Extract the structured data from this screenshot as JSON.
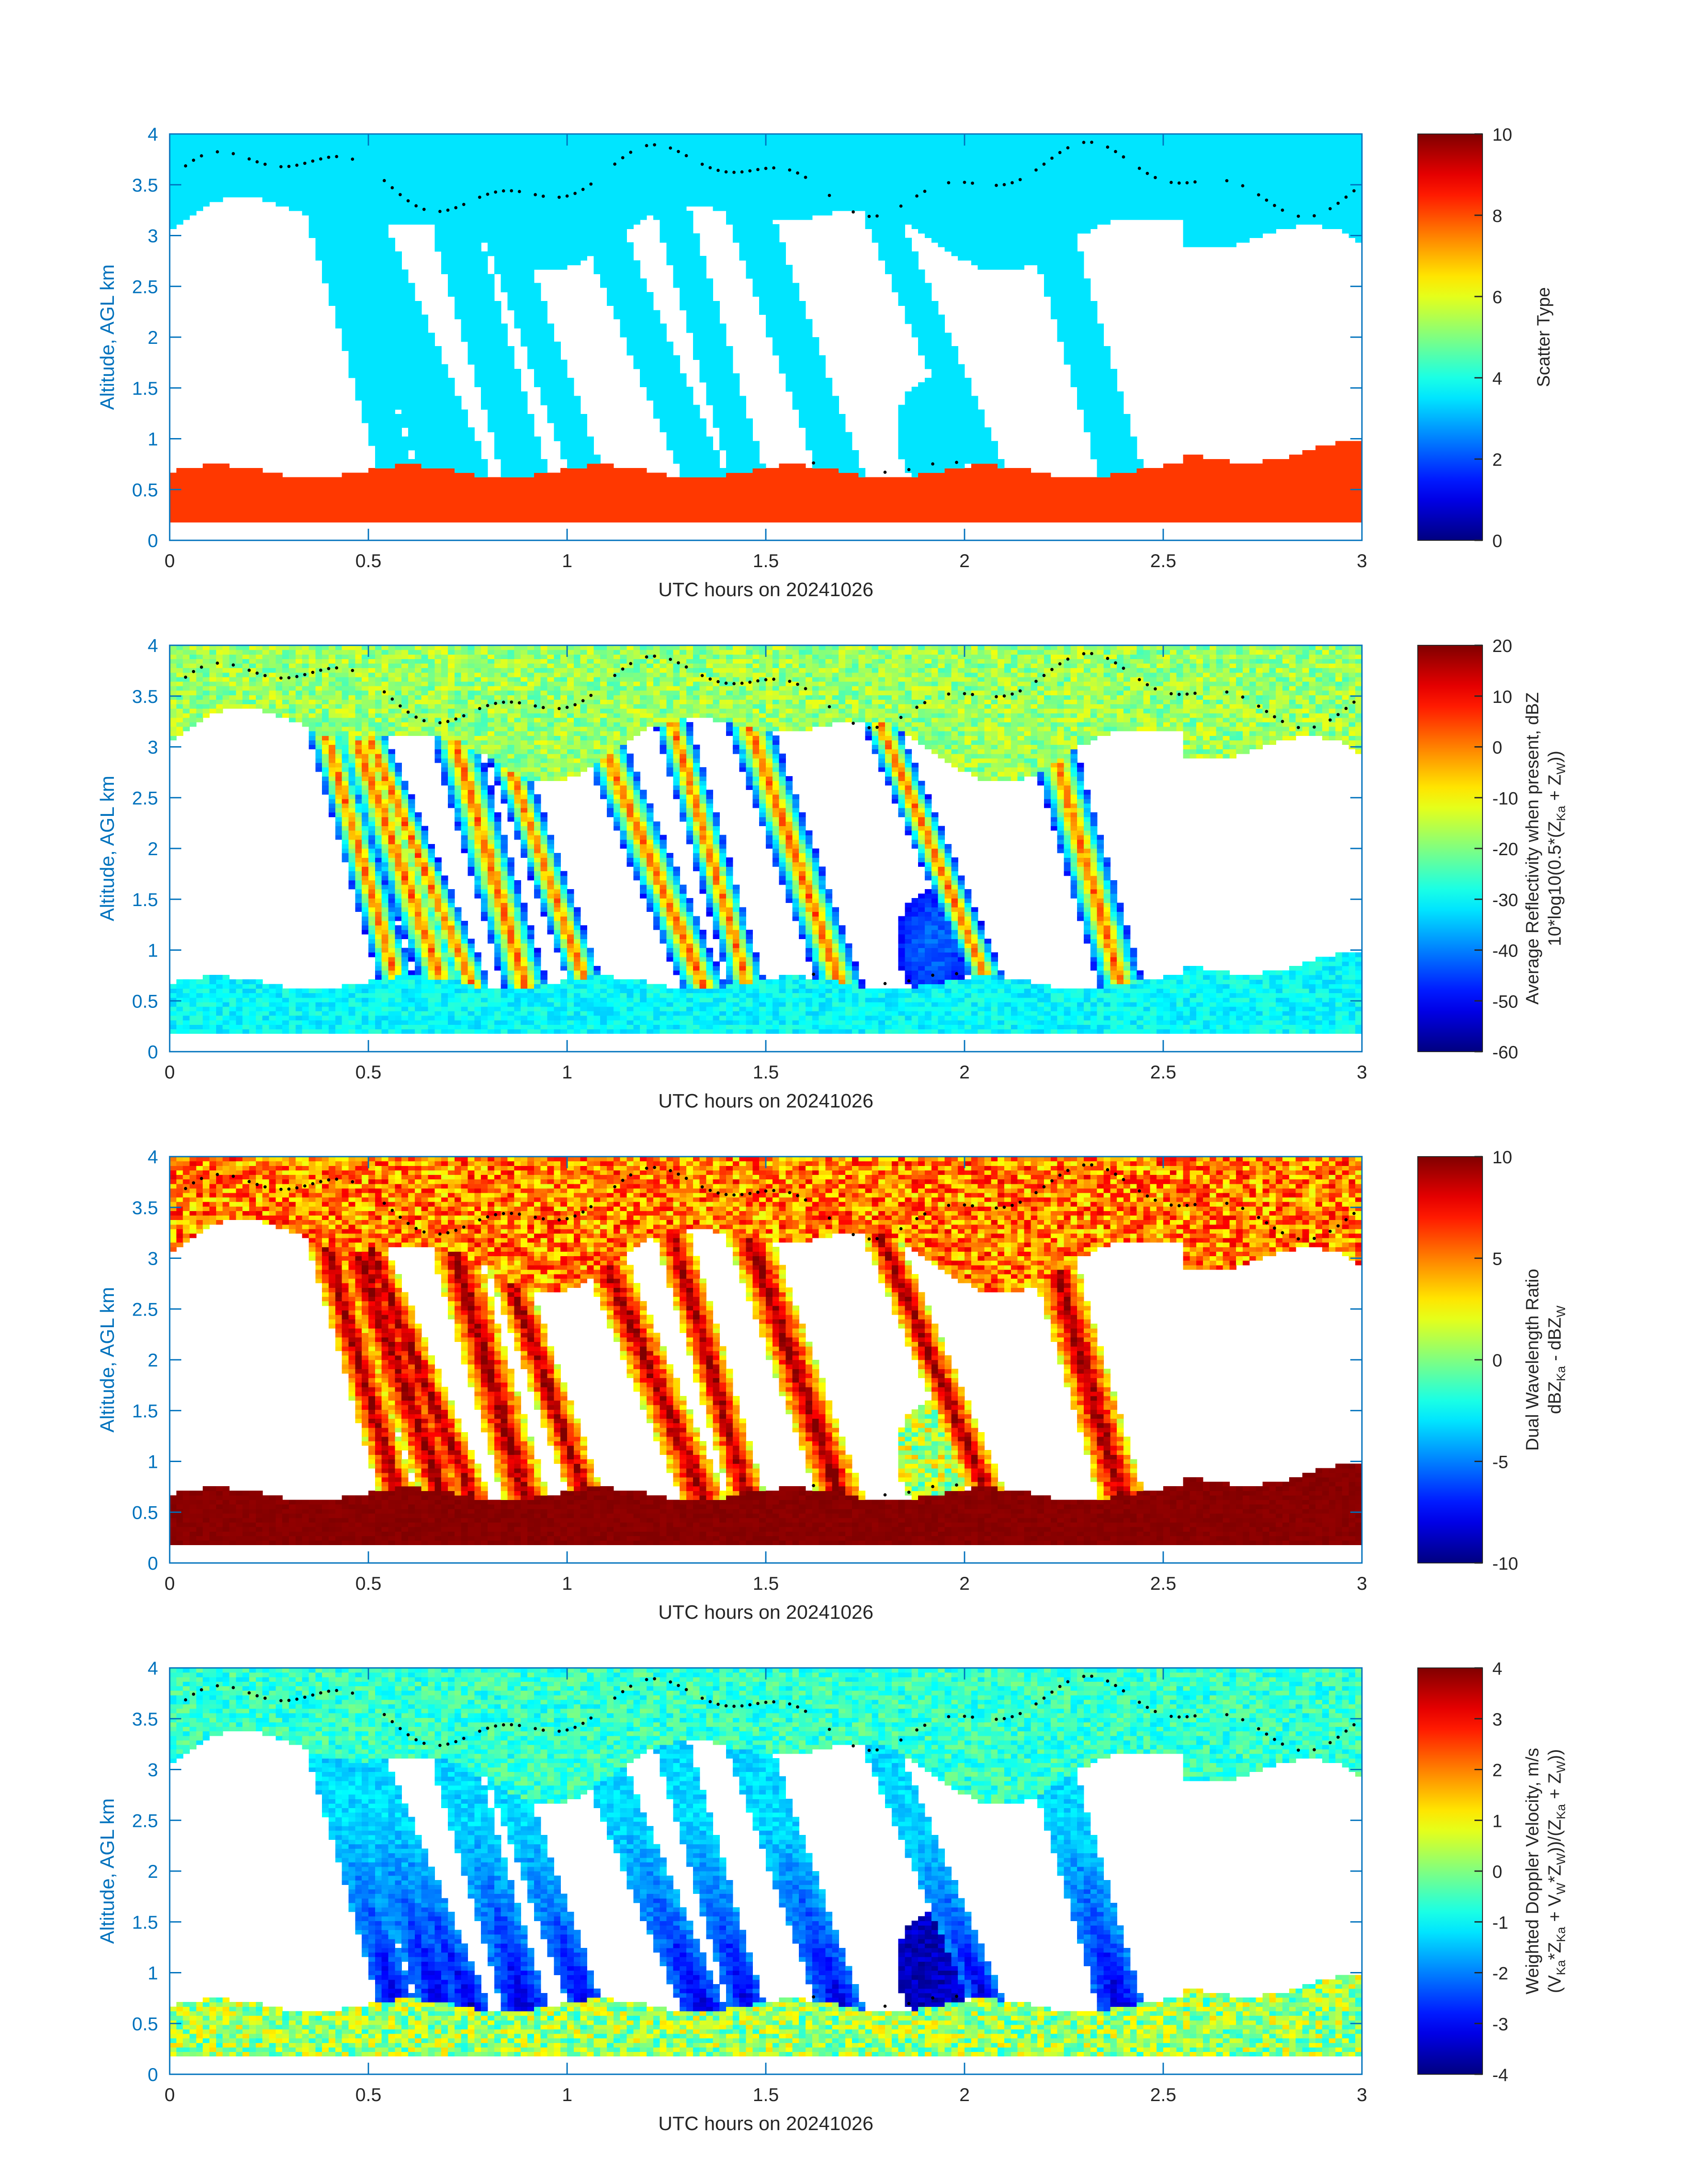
{
  "page_bg": "#ffffff",
  "axis_color": "#0072bd",
  "text_color": "#262626",
  "chart_data": [
    {
      "type": "heatmap",
      "id": "scatter-type",
      "title": "",
      "xlabel": "UTC hours on 20241026",
      "ylabel": "Altitude, AGL km",
      "xlim": [
        0,
        3
      ],
      "ylim": [
        0,
        4
      ],
      "xticks": [
        0,
        0.5,
        1,
        1.5,
        2,
        2.5,
        3
      ],
      "xtick_labels": [
        "0",
        "0.5",
        "1",
        "1.5",
        "2",
        "2.5",
        "3"
      ],
      "yticks": [
        0,
        0.5,
        1,
        1.5,
        2,
        2.5,
        3,
        3.5,
        4
      ],
      "ytick_labels": [
        "0",
        "0.5",
        "1",
        "1.5",
        "2",
        "2.5",
        "3",
        "3.5",
        "4"
      ],
      "colorbar": {
        "label_lines": [
          "Scatter Type"
        ],
        "min": 0,
        "max": 10,
        "ticks": [
          0,
          2,
          4,
          6,
          8,
          10
        ],
        "tick_labels": [
          "0",
          "2",
          "4",
          "6",
          "8",
          "10"
        ],
        "colormap": "jet"
      },
      "dominant_values": {
        "liquid_layer": 8.2,
        "ice_cloud": 3.5
      },
      "liquid_layer_top_km": 0.7,
      "fallstreak_hours": [
        0.6,
        0.72,
        0.8,
        0.92,
        1.08,
        1.38,
        1.48,
        1.72,
        2.1,
        2.42
      ],
      "cloud_base_dots_hours": [
        0.25,
        0.5,
        0.75,
        1.0,
        1.25,
        1.5,
        1.75,
        2.0,
        2.25,
        2.5,
        2.75,
        3.0
      ]
    },
    {
      "type": "heatmap",
      "id": "reflectivity",
      "title": "",
      "xlabel": "UTC hours on 20241026",
      "ylabel": "Altitude, AGL km",
      "xlim": [
        0,
        3
      ],
      "ylim": [
        0,
        4
      ],
      "xticks": [
        0,
        0.5,
        1,
        1.5,
        2,
        2.5,
        3
      ],
      "xtick_labels": [
        "0",
        "0.5",
        "1",
        "1.5",
        "2",
        "2.5",
        "3"
      ],
      "yticks": [
        0,
        0.5,
        1,
        1.5,
        2,
        2.5,
        3,
        3.5,
        4
      ],
      "ytick_labels": [
        "0",
        "0.5",
        "1",
        "1.5",
        "2",
        "2.5",
        "3",
        "3.5",
        "4"
      ],
      "colorbar": {
        "label_lines": [
          "Average Reflectivity when present, dBZ",
          "10*log10(0.5*(Z_Ka + Z_W))"
        ],
        "min": -60,
        "max": 20,
        "ticks": [
          -60,
          -50,
          -40,
          -30,
          -20,
          -10,
          0,
          10,
          20
        ],
        "tick_labels": [
          "-60",
          "-50",
          "-40",
          "-30",
          "-20",
          "-10",
          "0",
          "10",
          "20"
        ],
        "colormap": "jet"
      },
      "typical_values_dBZ": {
        "liquid_layer": -28,
        "upper_ice": -15,
        "fallstreak_core": 10,
        "fallstreak_edge": -50
      }
    },
    {
      "type": "heatmap",
      "id": "dual-wavelength-ratio",
      "title": "",
      "xlabel": "UTC hours on 20241026",
      "ylabel": "Altitude, AGL km",
      "xlim": [
        0,
        3
      ],
      "ylim": [
        0,
        4
      ],
      "xticks": [
        0,
        0.5,
        1,
        1.5,
        2,
        2.5,
        3
      ],
      "xtick_labels": [
        "0",
        "0.5",
        "1",
        "1.5",
        "2",
        "2.5",
        "3"
      ],
      "yticks": [
        0,
        0.5,
        1,
        1.5,
        2,
        2.5,
        3,
        3.5,
        4
      ],
      "ytick_labels": [
        "0",
        "0.5",
        "1",
        "1.5",
        "2",
        "2.5",
        "3",
        "3.5",
        "4"
      ],
      "colorbar": {
        "label_lines": [
          "Dual Wavelength Ratio",
          "dBZ_Ka - dBZ_W"
        ],
        "min": -10,
        "max": 10,
        "ticks": [
          -10,
          -5,
          0,
          5,
          10
        ],
        "tick_labels": [
          "-10",
          "-5",
          "0",
          "5",
          "10"
        ],
        "colormap": "jet"
      },
      "typical_values_dB": {
        "liquid_layer": 10,
        "upper_ice": 6,
        "fallstreak": 5
      }
    },
    {
      "type": "heatmap",
      "id": "doppler-velocity",
      "title": "",
      "xlabel": "UTC hours on 20241026",
      "ylabel": "Altitude, AGL km",
      "xlim": [
        0,
        3
      ],
      "ylim": [
        0,
        4
      ],
      "xticks": [
        0,
        0.5,
        1,
        1.5,
        2,
        2.5,
        3
      ],
      "xtick_labels": [
        "0",
        "0.5",
        "1",
        "1.5",
        "2",
        "2.5",
        "3"
      ],
      "yticks": [
        0,
        0.5,
        1,
        1.5,
        2,
        2.5,
        3,
        3.5,
        4
      ],
      "ytick_labels": [
        "0",
        "0.5",
        "1",
        "1.5",
        "2",
        "2.5",
        "3",
        "3.5",
        "4"
      ],
      "colorbar": {
        "label_lines": [
          "Weighted Doppler Velocity, m/s",
          "(V_Ka*Z_Ka + V_W*Z_W))/(Z_Ka + Z_W))"
        ],
        "min": -4,
        "max": 4,
        "ticks": [
          -4,
          -3,
          -2,
          -1,
          0,
          1,
          2,
          3,
          4
        ],
        "tick_labels": [
          "-4",
          "-3",
          "-2",
          "-1",
          "0",
          "1",
          "2",
          "3",
          "4"
        ],
        "colormap": "jet"
      },
      "typical_values_ms": {
        "liquid_layer": 0,
        "upper_ice": -0.5,
        "fallstreak_low": -3.5
      }
    }
  ]
}
